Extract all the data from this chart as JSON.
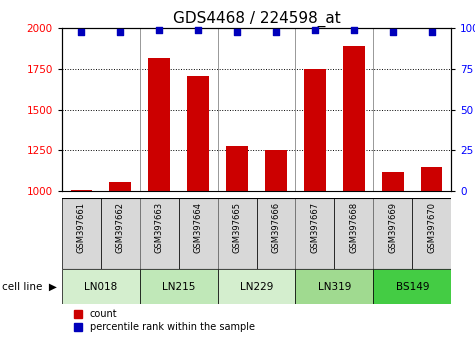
{
  "title": "GDS4468 / 224598_at",
  "samples": [
    "GSM397661",
    "GSM397662",
    "GSM397663",
    "GSM397664",
    "GSM397665",
    "GSM397666",
    "GSM397667",
    "GSM397668",
    "GSM397669",
    "GSM397670"
  ],
  "counts": [
    1010,
    1055,
    1820,
    1710,
    1280,
    1250,
    1750,
    1890,
    1115,
    1150
  ],
  "percentiles": [
    98,
    98,
    99,
    99,
    98,
    98,
    99,
    99,
    98,
    98
  ],
  "cell_lines": [
    {
      "name": "LN018",
      "start": 0,
      "end": 1,
      "color": "#d4eece"
    },
    {
      "name": "LN215",
      "start": 2,
      "end": 3,
      "color": "#c0e8b8"
    },
    {
      "name": "LN229",
      "start": 4,
      "end": 5,
      "color": "#d4eece"
    },
    {
      "name": "LN319",
      "start": 6,
      "end": 7,
      "color": "#a0d890"
    },
    {
      "name": "BS149",
      "start": 8,
      "end": 9,
      "color": "#44cc44"
    }
  ],
  "ylim_left": [
    1000,
    2000
  ],
  "ylim_right": [
    0,
    100
  ],
  "bar_color": "#cc0000",
  "dot_color": "#0000bb",
  "grid_values": [
    1250,
    1500,
    1750
  ],
  "yticks_left": [
    1000,
    1250,
    1500,
    1750,
    2000
  ],
  "yticks_right": [
    0,
    25,
    50,
    75,
    100
  ],
  "title_fontsize": 11,
  "tick_fontsize": 7.5,
  "label_fontsize": 7,
  "bar_width": 0.55,
  "sample_box_color": "#d8d8d8",
  "cell_line_label": "cell line",
  "legend_items": [
    {
      "color": "#cc0000",
      "label": "count"
    },
    {
      "color": "#0000bb",
      "label": "percentile rank within the sample"
    }
  ]
}
